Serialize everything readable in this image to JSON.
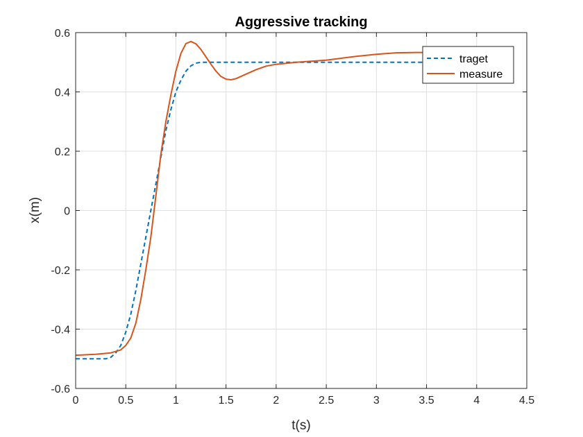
{
  "chart_data": {
    "type": "line",
    "title": "Aggressive tracking",
    "xlabel": "t(s)",
    "ylabel": "x(m)",
    "xlim": [
      0,
      4.5
    ],
    "ylim": [
      -0.6,
      0.6
    ],
    "xticks": [
      0,
      0.5,
      1,
      1.5,
      2,
      2.5,
      3,
      3.5,
      4,
      4.5
    ],
    "xtick_labels": [
      "0",
      "0.5",
      "1",
      "1.5",
      "2",
      "2.5",
      "3",
      "3.5",
      "4",
      "4.5"
    ],
    "yticks": [
      -0.6,
      -0.4,
      -0.2,
      0,
      0.2,
      0.4,
      0.6
    ],
    "ytick_labels": [
      "-0.6",
      "-0.4",
      "-0.2",
      "0",
      "0.2",
      "0.4",
      "0.6"
    ],
    "grid": true,
    "legend_position": "top-right",
    "series": [
      {
        "name": "traget",
        "color": "#0072BD",
        "style": "dashed",
        "x": [
          0,
          0.3,
          0.35,
          0.4,
          0.45,
          0.5,
          0.55,
          0.6,
          0.65,
          0.7,
          0.75,
          0.8,
          0.85,
          0.9,
          0.95,
          1.0,
          1.05,
          1.1,
          1.15,
          1.2,
          1.25,
          1.3,
          3.5
        ],
        "y": [
          -0.5,
          -0.5,
          -0.495,
          -0.48,
          -0.455,
          -0.41,
          -0.35,
          -0.27,
          -0.18,
          -0.09,
          0.0,
          0.09,
          0.18,
          0.27,
          0.34,
          0.4,
          0.44,
          0.47,
          0.488,
          0.497,
          0.5,
          0.5,
          0.5
        ]
      },
      {
        "name": "measure",
        "color": "#D95319",
        "style": "solid",
        "x": [
          0,
          0.2,
          0.35,
          0.45,
          0.5,
          0.55,
          0.6,
          0.65,
          0.7,
          0.75,
          0.8,
          0.85,
          0.9,
          0.95,
          1.0,
          1.05,
          1.1,
          1.15,
          1.2,
          1.25,
          1.3,
          1.35,
          1.4,
          1.45,
          1.5,
          1.55,
          1.6,
          1.7,
          1.8,
          1.9,
          2.0,
          2.2,
          2.5,
          2.8,
          3.0,
          3.2,
          3.4,
          3.5
        ],
        "y": [
          -0.488,
          -0.485,
          -0.48,
          -0.47,
          -0.455,
          -0.43,
          -0.38,
          -0.3,
          -0.2,
          -0.09,
          0.05,
          0.19,
          0.3,
          0.39,
          0.47,
          0.53,
          0.563,
          0.57,
          0.562,
          0.543,
          0.518,
          0.493,
          0.47,
          0.452,
          0.443,
          0.441,
          0.445,
          0.46,
          0.475,
          0.487,
          0.493,
          0.5,
          0.507,
          0.52,
          0.527,
          0.532,
          0.533,
          0.533
        ]
      }
    ]
  }
}
